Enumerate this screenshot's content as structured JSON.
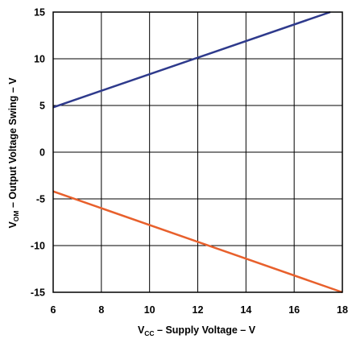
{
  "chart_data": {
    "type": "line",
    "xlabel": {
      "main": "V",
      "sub": "CC",
      "rest": " – Supply Voltage – V"
    },
    "ylabel": {
      "main": "V",
      "sub": "OM",
      "rest": " – Output Voltage Swing – V"
    },
    "xlim": [
      6,
      18
    ],
    "ylim": [
      -15,
      15
    ],
    "xticks": [
      "6",
      "8",
      "10",
      "12",
      "14",
      "16",
      "18"
    ],
    "yticks": [
      "15",
      "10",
      "5",
      "0",
      "-5",
      "-10",
      "-15"
    ],
    "grid": true,
    "series": [
      {
        "color": "#2e3a8c",
        "x": [
          6,
          17.5
        ],
        "y": [
          4.8,
          15
        ]
      },
      {
        "color": "#e8602c",
        "x": [
          6,
          18
        ],
        "y": [
          -4.2,
          -15
        ]
      }
    ]
  }
}
